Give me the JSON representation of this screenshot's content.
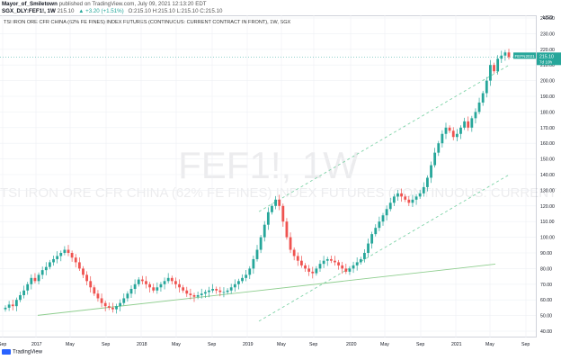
{
  "header": {
    "publisher_line_prefix": "Mayor_of_Smiletown",
    "publisher_line_rest": "published on TradingView.com, July 09, 2021 12:13:20 EDT",
    "symbol": "SGX_DLY:FEF1!, 1W",
    "price": "215.10",
    "change": "▲ +3.20 (+1.51%)",
    "ohlc": "O:215.10 H:215.10 L:215.10 C:215.10"
  },
  "chart_title": "TSI IRON ORE CFR CHINA (62% FE FINES) INDEX FUTURES (CONTINUOUS: CURRENT CONTRACT IN FRONT), 1W, SGX",
  "watermark": {
    "symbol": "FEF1!, 1W",
    "description": "TSI IRON ORE CFR CHINA (62% FE FINES) INDEX FUTURES (CONTINUOUS: CURRENT CONTRACT IN FRONT)"
  },
  "currency": "USD",
  "last_price_tag": {
    "symbol": "FEFN2021",
    "price": "215.10",
    "countdown": "7d 10h"
  },
  "footer": {
    "brand": "TradingView"
  },
  "colors": {
    "up": "#26a69a",
    "down": "#ef5350",
    "trend_support": "#8fce8f",
    "channel": "#7fd3a8"
  },
  "chart_data": {
    "type": "candlestick",
    "title": "TSI IRON ORE CFR CHINA (62% FE FINES) INDEX FUTURES (CONTINUOUS: CURRENT CONTRACT IN FRONT), 1W, SGX",
    "ylim": [
      40,
      240
    ],
    "y_ticks": [
      "40.00",
      "50.00",
      "60.00",
      "70.00",
      "80.00",
      "90.00",
      "100.00",
      "110.00",
      "120.00",
      "130.00",
      "140.00",
      "150.00",
      "160.00",
      "170.00",
      "180.00",
      "190.00",
      "200.00",
      "210.00",
      "220.00",
      "230.00",
      "240.00"
    ],
    "x_ticks": [
      "Sep",
      "2017",
      "May",
      "Sep",
      "2018",
      "May",
      "Sep",
      "2019",
      "May",
      "Sep",
      "2020",
      "May",
      "Sep",
      "2021",
      "May",
      "Sep"
    ],
    "grid": true,
    "series": [
      {
        "values": [
          55,
          57,
          56,
          60,
          63,
          66,
          70,
          74,
          72,
          76,
          79,
          81,
          84,
          86,
          88,
          90,
          92,
          90,
          87,
          84,
          80,
          76,
          72,
          68,
          64,
          61,
          58,
          56,
          55,
          54,
          56,
          58,
          61,
          64,
          67,
          70,
          73,
          72,
          70,
          68,
          66,
          68,
          70,
          72,
          74,
          72,
          70,
          68,
          66,
          64,
          63,
          62,
          63,
          64,
          65,
          66,
          67,
          66,
          65,
          65,
          66,
          68,
          70,
          72,
          74,
          76,
          80,
          86,
          92,
          100,
          108,
          116,
          120,
          124,
          120,
          110,
          100,
          92,
          88,
          85,
          82,
          80,
          78,
          77,
          80,
          83,
          85,
          86,
          85,
          84,
          82,
          80,
          78,
          80,
          82,
          84,
          86,
          90,
          96,
          102,
          106,
          110,
          114,
          118,
          122,
          126,
          128,
          126,
          124,
          122,
          124,
          126,
          128,
          132,
          138,
          146,
          154,
          160,
          166,
          170,
          168,
          164,
          166,
          170,
          174,
          170,
          176,
          180,
          186,
          192,
          200,
          210,
          206,
          214,
          216,
          218,
          215
        ]
      }
    ],
    "trend_lines": [
      {
        "type": "support",
        "from": [
          "2017",
          50
        ],
        "to": [
          "2021",
          80
        ]
      },
      {
        "type": "channel-upper",
        "from": [
          "2019",
          112
        ],
        "to": [
          "2021",
          190
        ]
      },
      {
        "type": "channel-lower",
        "from": [
          "2019",
          42
        ],
        "to": [
          "2021",
          120
        ]
      }
    ]
  }
}
